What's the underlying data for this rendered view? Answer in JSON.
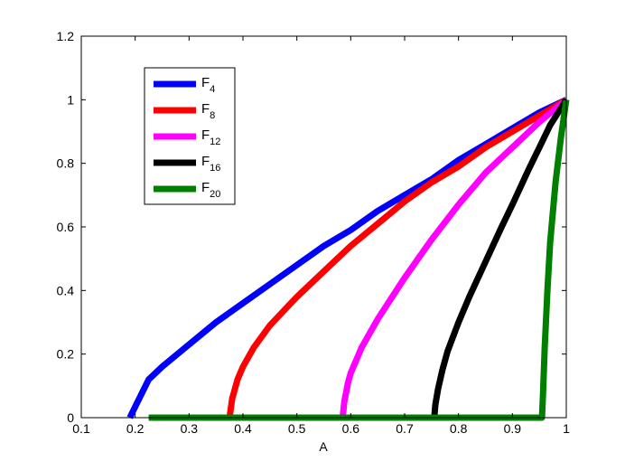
{
  "chart_data": {
    "type": "line",
    "title": "",
    "xlabel": "A",
    "ylabel": "",
    "xlim": [
      0.1,
      1
    ],
    "ylim": [
      0,
      1.2
    ],
    "xticks": [
      "0.1",
      "0.2",
      "0.3",
      "0.4",
      "0.5",
      "0.6",
      "0.7",
      "0.8",
      "0.9",
      "1"
    ],
    "yticks": [
      "0",
      "0.2",
      "0.4",
      "0.6",
      "0.8",
      "1",
      "1.2"
    ],
    "grid": false,
    "legend_position": "top-left",
    "series": [
      {
        "name": "F",
        "subscript": "4",
        "color": "#0000ff",
        "x": [
          0.19,
          0.225,
          0.25,
          0.3,
          0.35,
          0.4,
          0.45,
          0.5,
          0.55,
          0.6,
          0.65,
          0.7,
          0.75,
          0.8,
          0.85,
          0.9,
          0.95,
          1.0
        ],
        "y": [
          0.0,
          0.12,
          0.16,
          0.23,
          0.3,
          0.36,
          0.42,
          0.48,
          0.54,
          0.59,
          0.65,
          0.7,
          0.75,
          0.81,
          0.86,
          0.91,
          0.96,
          1.0
        ]
      },
      {
        "name": "F",
        "subscript": "8",
        "color": "#ff0000",
        "x": [
          0.375,
          0.38,
          0.39,
          0.4,
          0.42,
          0.45,
          0.5,
          0.55,
          0.6,
          0.65,
          0.7,
          0.75,
          0.8,
          0.85,
          0.9,
          0.95,
          1.0
        ],
        "y": [
          0.0,
          0.06,
          0.12,
          0.16,
          0.22,
          0.29,
          0.38,
          0.46,
          0.54,
          0.61,
          0.68,
          0.74,
          0.79,
          0.85,
          0.9,
          0.95,
          1.0
        ]
      },
      {
        "name": "F",
        "subscript": "12",
        "color": "#ff00ff",
        "x": [
          0.585,
          0.588,
          0.595,
          0.6,
          0.62,
          0.65,
          0.7,
          0.75,
          0.8,
          0.85,
          0.9,
          0.95,
          1.0
        ],
        "y": [
          0.0,
          0.05,
          0.11,
          0.14,
          0.22,
          0.31,
          0.44,
          0.56,
          0.67,
          0.77,
          0.85,
          0.93,
          1.0
        ]
      },
      {
        "name": "F",
        "subscript": "16",
        "color": "#000000",
        "x": [
          0.755,
          0.757,
          0.762,
          0.77,
          0.78,
          0.8,
          0.82,
          0.85,
          0.88,
          0.9,
          0.93,
          0.95,
          0.97,
          1.0
        ],
        "y": [
          0.0,
          0.04,
          0.09,
          0.15,
          0.21,
          0.3,
          0.38,
          0.49,
          0.6,
          0.67,
          0.78,
          0.85,
          0.92,
          1.0
        ]
      },
      {
        "name": "F",
        "subscript": "20",
        "color": "#007f00",
        "x": [
          0.225,
          0.5,
          0.9,
          0.955,
          0.957,
          0.96,
          0.965,
          0.97,
          0.98,
          0.99,
          1.0
        ],
        "y": [
          0.0,
          0.0,
          0.0,
          0.0,
          0.08,
          0.22,
          0.4,
          0.55,
          0.74,
          0.88,
          1.0
        ]
      }
    ]
  }
}
